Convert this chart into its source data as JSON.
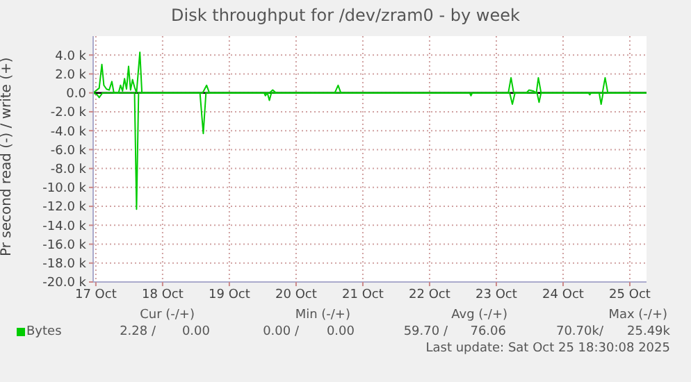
{
  "chart_data": {
    "type": "line",
    "title": "Disk throughput for /dev/zram0 - by week",
    "ylabel": "Pr second read (-) / write (+)",
    "xlim": [
      "2025-10-17T11:02",
      "2025-10-25T18:00"
    ],
    "xticks": [
      {
        "value": "2025-10-17T12:00",
        "label": "17 Oct"
      },
      {
        "value": "2025-10-18T12:00",
        "label": "18 Oct"
      },
      {
        "value": "2025-10-19T12:00",
        "label": "19 Oct"
      },
      {
        "value": "2025-10-20T12:00",
        "label": "20 Oct"
      },
      {
        "value": "2025-10-21T12:00",
        "label": "21 Oct"
      },
      {
        "value": "2025-10-22T12:00",
        "label": "22 Oct"
      },
      {
        "value": "2025-10-23T12:00",
        "label": "23 Oct"
      },
      {
        "value": "2025-10-24T12:00",
        "label": "24 Oct"
      },
      {
        "value": "2025-10-25T12:00",
        "label": "25 Oct"
      }
    ],
    "ylim": [
      -20000,
      6000
    ],
    "yticks": [
      {
        "value": -20000,
        "label": "-20.0 k"
      },
      {
        "value": -18000,
        "label": "-18.0 k"
      },
      {
        "value": -16000,
        "label": "-16.0 k"
      },
      {
        "value": -14000,
        "label": "-14.0 k"
      },
      {
        "value": -12000,
        "label": "-12.0 k"
      },
      {
        "value": -10000,
        "label": "-10.0 k"
      },
      {
        "value": -8000,
        "label": "-8.0 k"
      },
      {
        "value": -6000,
        "label": "-6.0 k"
      },
      {
        "value": -4000,
        "label": "-4.0 k"
      },
      {
        "value": -2000,
        "label": "-2.0 k"
      },
      {
        "value": 0,
        "label": "0.0"
      },
      {
        "value": 2000,
        "label": "2.0 k"
      },
      {
        "value": 4000,
        "label": "4.0 k"
      }
    ],
    "grid": true,
    "legend": "bottom left",
    "marker": "none",
    "line_style": "solid",
    "ref_lines": [
      {
        "axis": "y",
        "value": 0,
        "color": "#000000"
      }
    ],
    "series": [
      {
        "name": "Bytes",
        "color": "#00cc00",
        "x": [
          "2025-10-17T11:02",
          "2025-10-17T13:12",
          "2025-10-17T14:10",
          "2025-10-17T14:53",
          "2025-10-17T15:50",
          "2025-10-17T16:48",
          "2025-10-17T17:46",
          "2025-10-17T18:29",
          "2025-10-17T20:10",
          "2025-10-17T20:53",
          "2025-10-17T21:36",
          "2025-10-17T22:19",
          "2025-10-17T23:02",
          "2025-10-17T23:46",
          "2025-10-18T00:29",
          "2025-10-18T01:12",
          "2025-10-18T01:55",
          "2025-10-18T02:38",
          "2025-10-18T03:50",
          "2025-10-18T04:34",
          "2025-10-19T02:24",
          "2025-10-19T03:50",
          "2025-10-19T04:48",
          "2025-10-20T02:24",
          "2025-10-20T03:36",
          "2025-10-20T04:48",
          "2025-10-21T01:55",
          "2025-10-21T03:07",
          "2025-10-21T04:05",
          "2025-10-23T16:19",
          "2025-10-23T17:17",
          "2025-10-23T18:14",
          "2025-10-23T22:48",
          "2025-10-23T23:46",
          "2025-10-24T01:12",
          "2025-10-24T02:24",
          "2025-10-24T03:07",
          "2025-10-24T04:05",
          "2025-10-25T02:10",
          "2025-10-25T03:07",
          "2025-10-25T04:05",
          "2025-10-25T18:00"
        ],
        "values": [
          0,
          500,
          3000,
          800,
          400,
          300,
          1200,
          0,
          0,
          800,
          200,
          1500,
          400,
          2800,
          300,
          1400,
          600,
          0,
          4300,
          0,
          0,
          800,
          0,
          0,
          300,
          0,
          0,
          800,
          0,
          0,
          1600,
          0,
          0,
          300,
          200,
          0,
          1600,
          0,
          0,
          1600,
          0,
          0
        ]
      },
      {
        "color": "#00cc00",
        "x": [
          "2025-10-17T11:02",
          "2025-10-17T12:29",
          "2025-10-17T13:12",
          "2025-10-17T14:24",
          "2025-10-18T01:55",
          "2025-10-18T02:38",
          "2025-10-18T03:22",
          "2025-10-19T01:26",
          "2025-10-19T02:38",
          "2025-10-19T03:36",
          "2025-10-20T00:29",
          "2025-10-20T00:58",
          "2025-10-20T01:41",
          "2025-10-20T02:24",
          "2025-10-20T03:07",
          "2025-10-23T02:24",
          "2025-10-23T02:53",
          "2025-10-23T03:22",
          "2025-10-23T16:48",
          "2025-10-23T17:46",
          "2025-10-23T18:43",
          "2025-10-24T02:38",
          "2025-10-24T03:22",
          "2025-10-24T04:05",
          "2025-10-24T21:07",
          "2025-10-24T21:36",
          "2025-10-24T22:05",
          "2025-10-25T00:58",
          "2025-10-25T01:41",
          "2025-10-25T02:24",
          "2025-10-25T18:00"
        ],
        "values": [
          0,
          -200,
          -500,
          0,
          0,
          -12300,
          0,
          0,
          -4300,
          0,
          0,
          -300,
          0,
          -800,
          0,
          0,
          -300,
          0,
          0,
          -1200,
          0,
          0,
          -1000,
          0,
          0,
          -200,
          0,
          0,
          -1200,
          0,
          0
        ]
      }
    ],
    "annotations": [
      "Cur (-/+)",
      "Min (-/+)",
      "Avg (-/+)",
      "Max (-/+)",
      "2.28 /",
      "0.00",
      "0.00 /",
      "0.00",
      "59.70 /",
      "76.06",
      "70.70k/",
      "25.49k",
      "Last update: Sat Oct 25 18:30:08 2025"
    ]
  }
}
